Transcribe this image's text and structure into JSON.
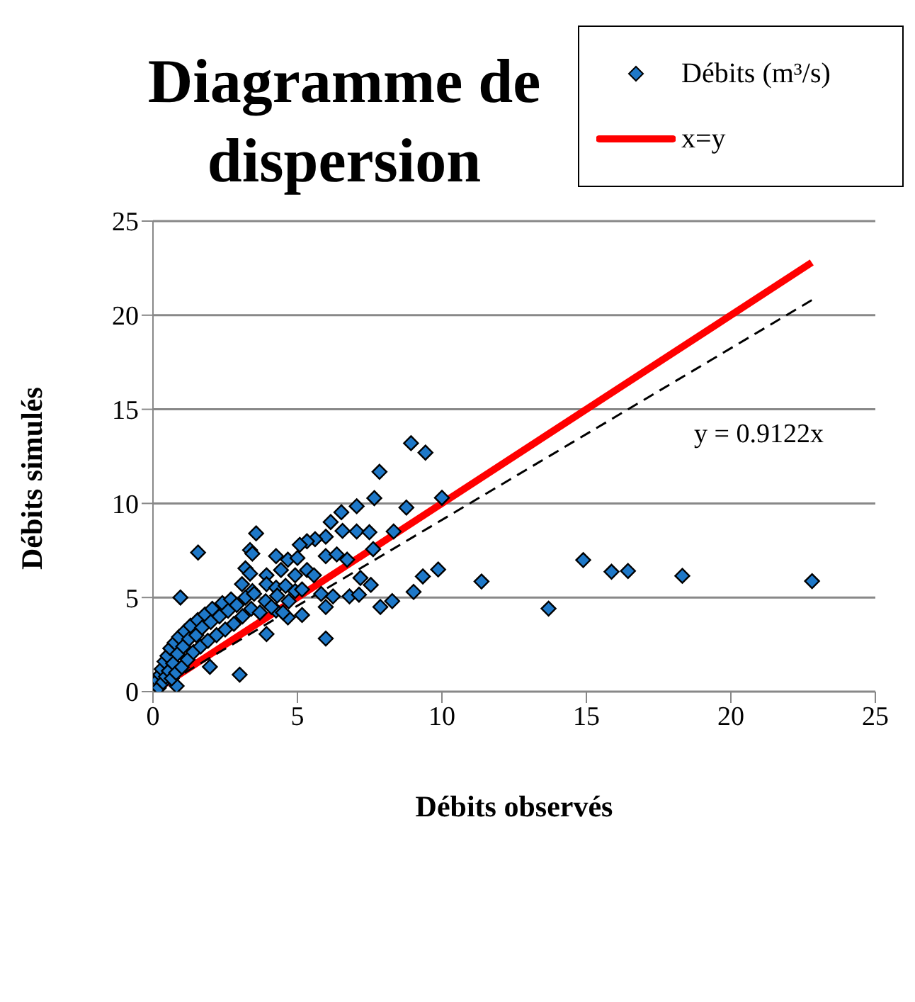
{
  "chart_data": {
    "type": "scatter",
    "title": "Diagramme de dispersion",
    "xlabel": "Débits observés",
    "ylabel": "Débits simulés",
    "xlim": [
      0,
      25
    ],
    "xticks": [
      0,
      5,
      10,
      15,
      20,
      25
    ],
    "ylim": [
      0,
      25
    ],
    "yticks": [
      0,
      5,
      10,
      15,
      20,
      25
    ],
    "grid": "y",
    "legend": "top right",
    "annotations": [
      "y = 0.9122x"
    ],
    "series": [
      {
        "name": "Débits (m³/s)",
        "marker": "diamond",
        "color": "#1e78c8",
        "x": [
          8.93,
          9.43,
          7.84,
          7.66,
          10.0,
          8.77,
          7.05,
          6.52,
          6.15,
          3.57,
          1.56,
          6.56,
          7.05,
          7.49,
          8.33,
          5.98,
          5.61,
          5.33,
          5.08,
          3.36,
          3.44,
          4.26,
          4.67,
          5.0,
          5.98,
          6.36,
          6.72,
          7.62,
          3.2,
          3.36,
          3.93,
          4.43,
          4.92,
          5.33,
          5.57,
          3.08,
          3.44,
          3.93,
          4.26,
          4.59,
          4.92,
          5.16,
          7.18,
          7.54,
          9.34,
          9.87,
          9.02,
          6.8,
          7.13,
          5.82,
          6.23,
          7.87,
          8.28,
          5.98,
          5.16,
          4.67,
          4.26,
          5.98,
          3.93,
          0.95,
          1.97,
          3.0,
          0.82,
          0.15,
          0.2,
          0.25,
          0.3,
          0.35,
          0.4,
          0.45,
          0.5,
          0.55,
          0.6,
          0.65,
          0.7,
          0.75,
          0.8,
          0.85,
          0.9,
          1.0,
          1.05,
          1.1,
          1.2,
          1.25,
          1.3,
          1.4,
          1.5,
          1.55,
          1.65,
          1.7,
          1.8,
          1.9,
          2.0,
          2.05,
          2.2,
          2.3,
          2.4,
          2.5,
          2.6,
          2.7,
          2.8,
          2.9,
          3.1,
          3.2,
          3.4,
          3.5,
          3.7,
          3.9,
          4.1,
          4.3,
          4.5,
          4.7,
          14.89,
          15.87,
          16.44,
          18.32,
          22.81,
          13.69,
          11.37
        ],
        "values": [
          13.2,
          12.7,
          11.68,
          10.28,
          10.3,
          9.78,
          9.85,
          9.53,
          9.01,
          8.41,
          7.39,
          8.54,
          8.51,
          8.47,
          8.51,
          8.23,
          8.1,
          7.99,
          7.8,
          7.52,
          7.33,
          7.2,
          7.01,
          7.1,
          7.2,
          7.29,
          7.01,
          7.57,
          6.55,
          6.27,
          6.18,
          6.46,
          6.18,
          6.46,
          6.18,
          5.71,
          5.34,
          5.71,
          5.52,
          5.62,
          5.34,
          5.43,
          6.04,
          5.67,
          6.12,
          6.49,
          5.3,
          5.06,
          5.15,
          5.19,
          5.06,
          4.5,
          4.81,
          4.5,
          4.07,
          3.94,
          4.31,
          2.82,
          3.06,
          5.0,
          1.32,
          0.9,
          0.3,
          0.6,
          0.2,
          0.9,
          1.2,
          0.5,
          1.6,
          0.8,
          1.9,
          1.1,
          2.3,
          0.7,
          1.5,
          2.6,
          1.0,
          2.0,
          2.9,
          1.3,
          2.4,
          3.2,
          1.7,
          2.8,
          3.5,
          2.1,
          3.0,
          3.8,
          2.4,
          3.4,
          4.1,
          2.7,
          3.7,
          4.4,
          3.0,
          4.0,
          4.7,
          3.3,
          4.3,
          4.9,
          3.6,
          4.6,
          4.0,
          5.0,
          4.4,
          5.2,
          4.2,
          4.8,
          4.5,
          5.1,
          4.2,
          4.8,
          6.99,
          6.37,
          6.41,
          6.15,
          5.87,
          4.41,
          5.85
        ]
      },
      {
        "name": "x=y",
        "type": "line",
        "marker": "none",
        "color": "#ff0000",
        "x": [
          0,
          22.8
        ],
        "values": [
          0,
          22.8
        ]
      },
      {
        "type": "line",
        "marker": "none",
        "color": "#000000",
        "line_style": "dashed",
        "x": [
          0,
          22.8
        ],
        "values": [
          0,
          20.8
        ]
      }
    ]
  }
}
